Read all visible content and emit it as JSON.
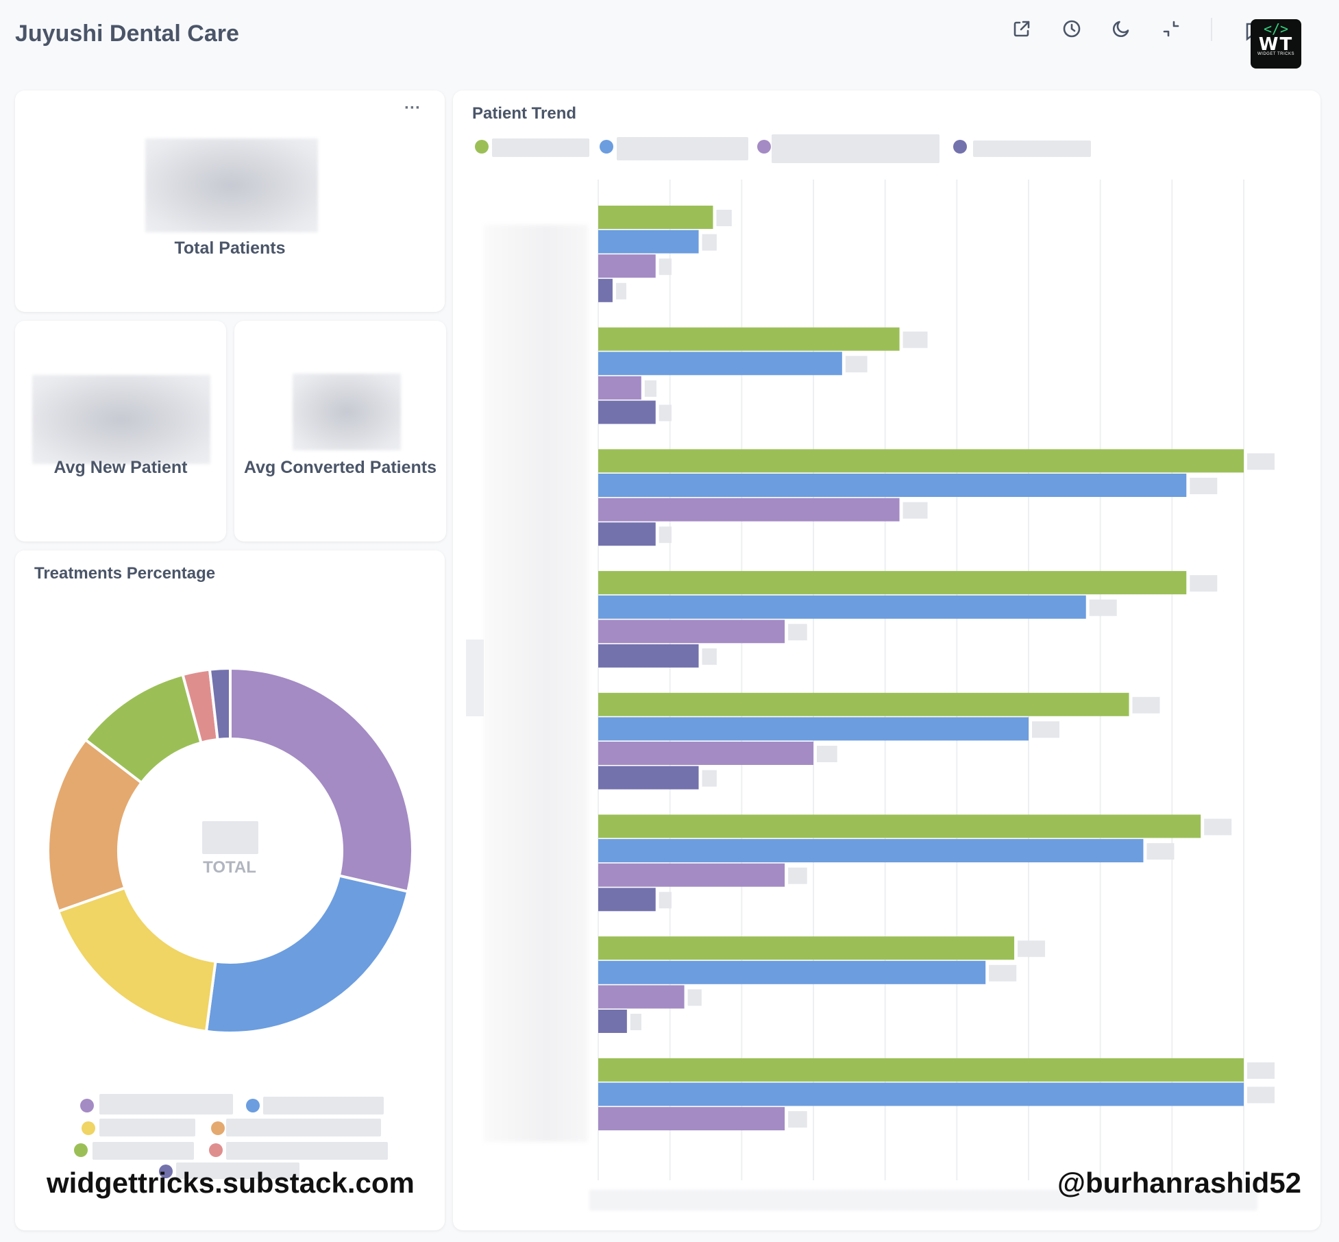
{
  "header": {
    "title": "Juyushi Dental Care",
    "icons": [
      "external-link-icon",
      "clock-icon",
      "moon-icon",
      "collapse-icon",
      "bookmark-icon"
    ]
  },
  "logo": {
    "tag": "</>",
    "letters": "WT",
    "subtitle": "WIDGET TRICKS"
  },
  "kpi": {
    "total_patients_label": "Total Patients",
    "avg_new_patient_label": "Avg New Patient",
    "avg_converted_label": "Avg Converted Patients",
    "menu_label": "···"
  },
  "treatments": {
    "title": "Treatments Percentage",
    "center_label": "TOTAL"
  },
  "trend": {
    "title": "Patient Trend"
  },
  "watermarks": {
    "left": "widgettricks.substack.com",
    "right": "@burhanrashid52"
  },
  "colors": {
    "green": "#9bbf56",
    "blue": "#6b9ddf",
    "purple": "#a48bc4",
    "indigo": "#7372ad",
    "yellow": "#f0d464",
    "orange": "#e4a96f",
    "red": "#df8e8e"
  },
  "chart_data": [
    {
      "type": "pie",
      "title": "Treatments Percentage",
      "center_label": "TOTAL",
      "slices": [
        {
          "color": "#a48bc4",
          "value": 28.6
        },
        {
          "color": "#6b9ddf",
          "value": 23.5
        },
        {
          "color": "#f0d464",
          "value": 17.5
        },
        {
          "color": "#e4a96f",
          "value": 15.8
        },
        {
          "color": "#9bbf56",
          "value": 10.4
        },
        {
          "color": "#df8e8e",
          "value": 2.4
        },
        {
          "color": "#7372ad",
          "value": 1.8
        }
      ]
    },
    {
      "type": "bar",
      "orientation": "horizontal",
      "title": "Patient Trend",
      "xlim": [
        0,
        9
      ],
      "grid": true,
      "legend_position": "top-left",
      "series": [
        {
          "color": "#9bbf56",
          "values": [
            1.6,
            4.2,
            9.0,
            8.2,
            7.4,
            8.4,
            5.8,
            9.0
          ]
        },
        {
          "color": "#6b9ddf",
          "values": [
            1.4,
            3.4,
            8.2,
            6.8,
            6.0,
            7.6,
            5.4,
            9.0
          ]
        },
        {
          "color": "#a48bc4",
          "values": [
            0.8,
            0.6,
            4.2,
            2.6,
            3.0,
            2.6,
            1.2,
            2.6
          ]
        },
        {
          "color": "#7372ad",
          "values": [
            0.2,
            0.8,
            0.8,
            1.4,
            1.4,
            0.8,
            0.4,
            null
          ]
        }
      ]
    }
  ]
}
